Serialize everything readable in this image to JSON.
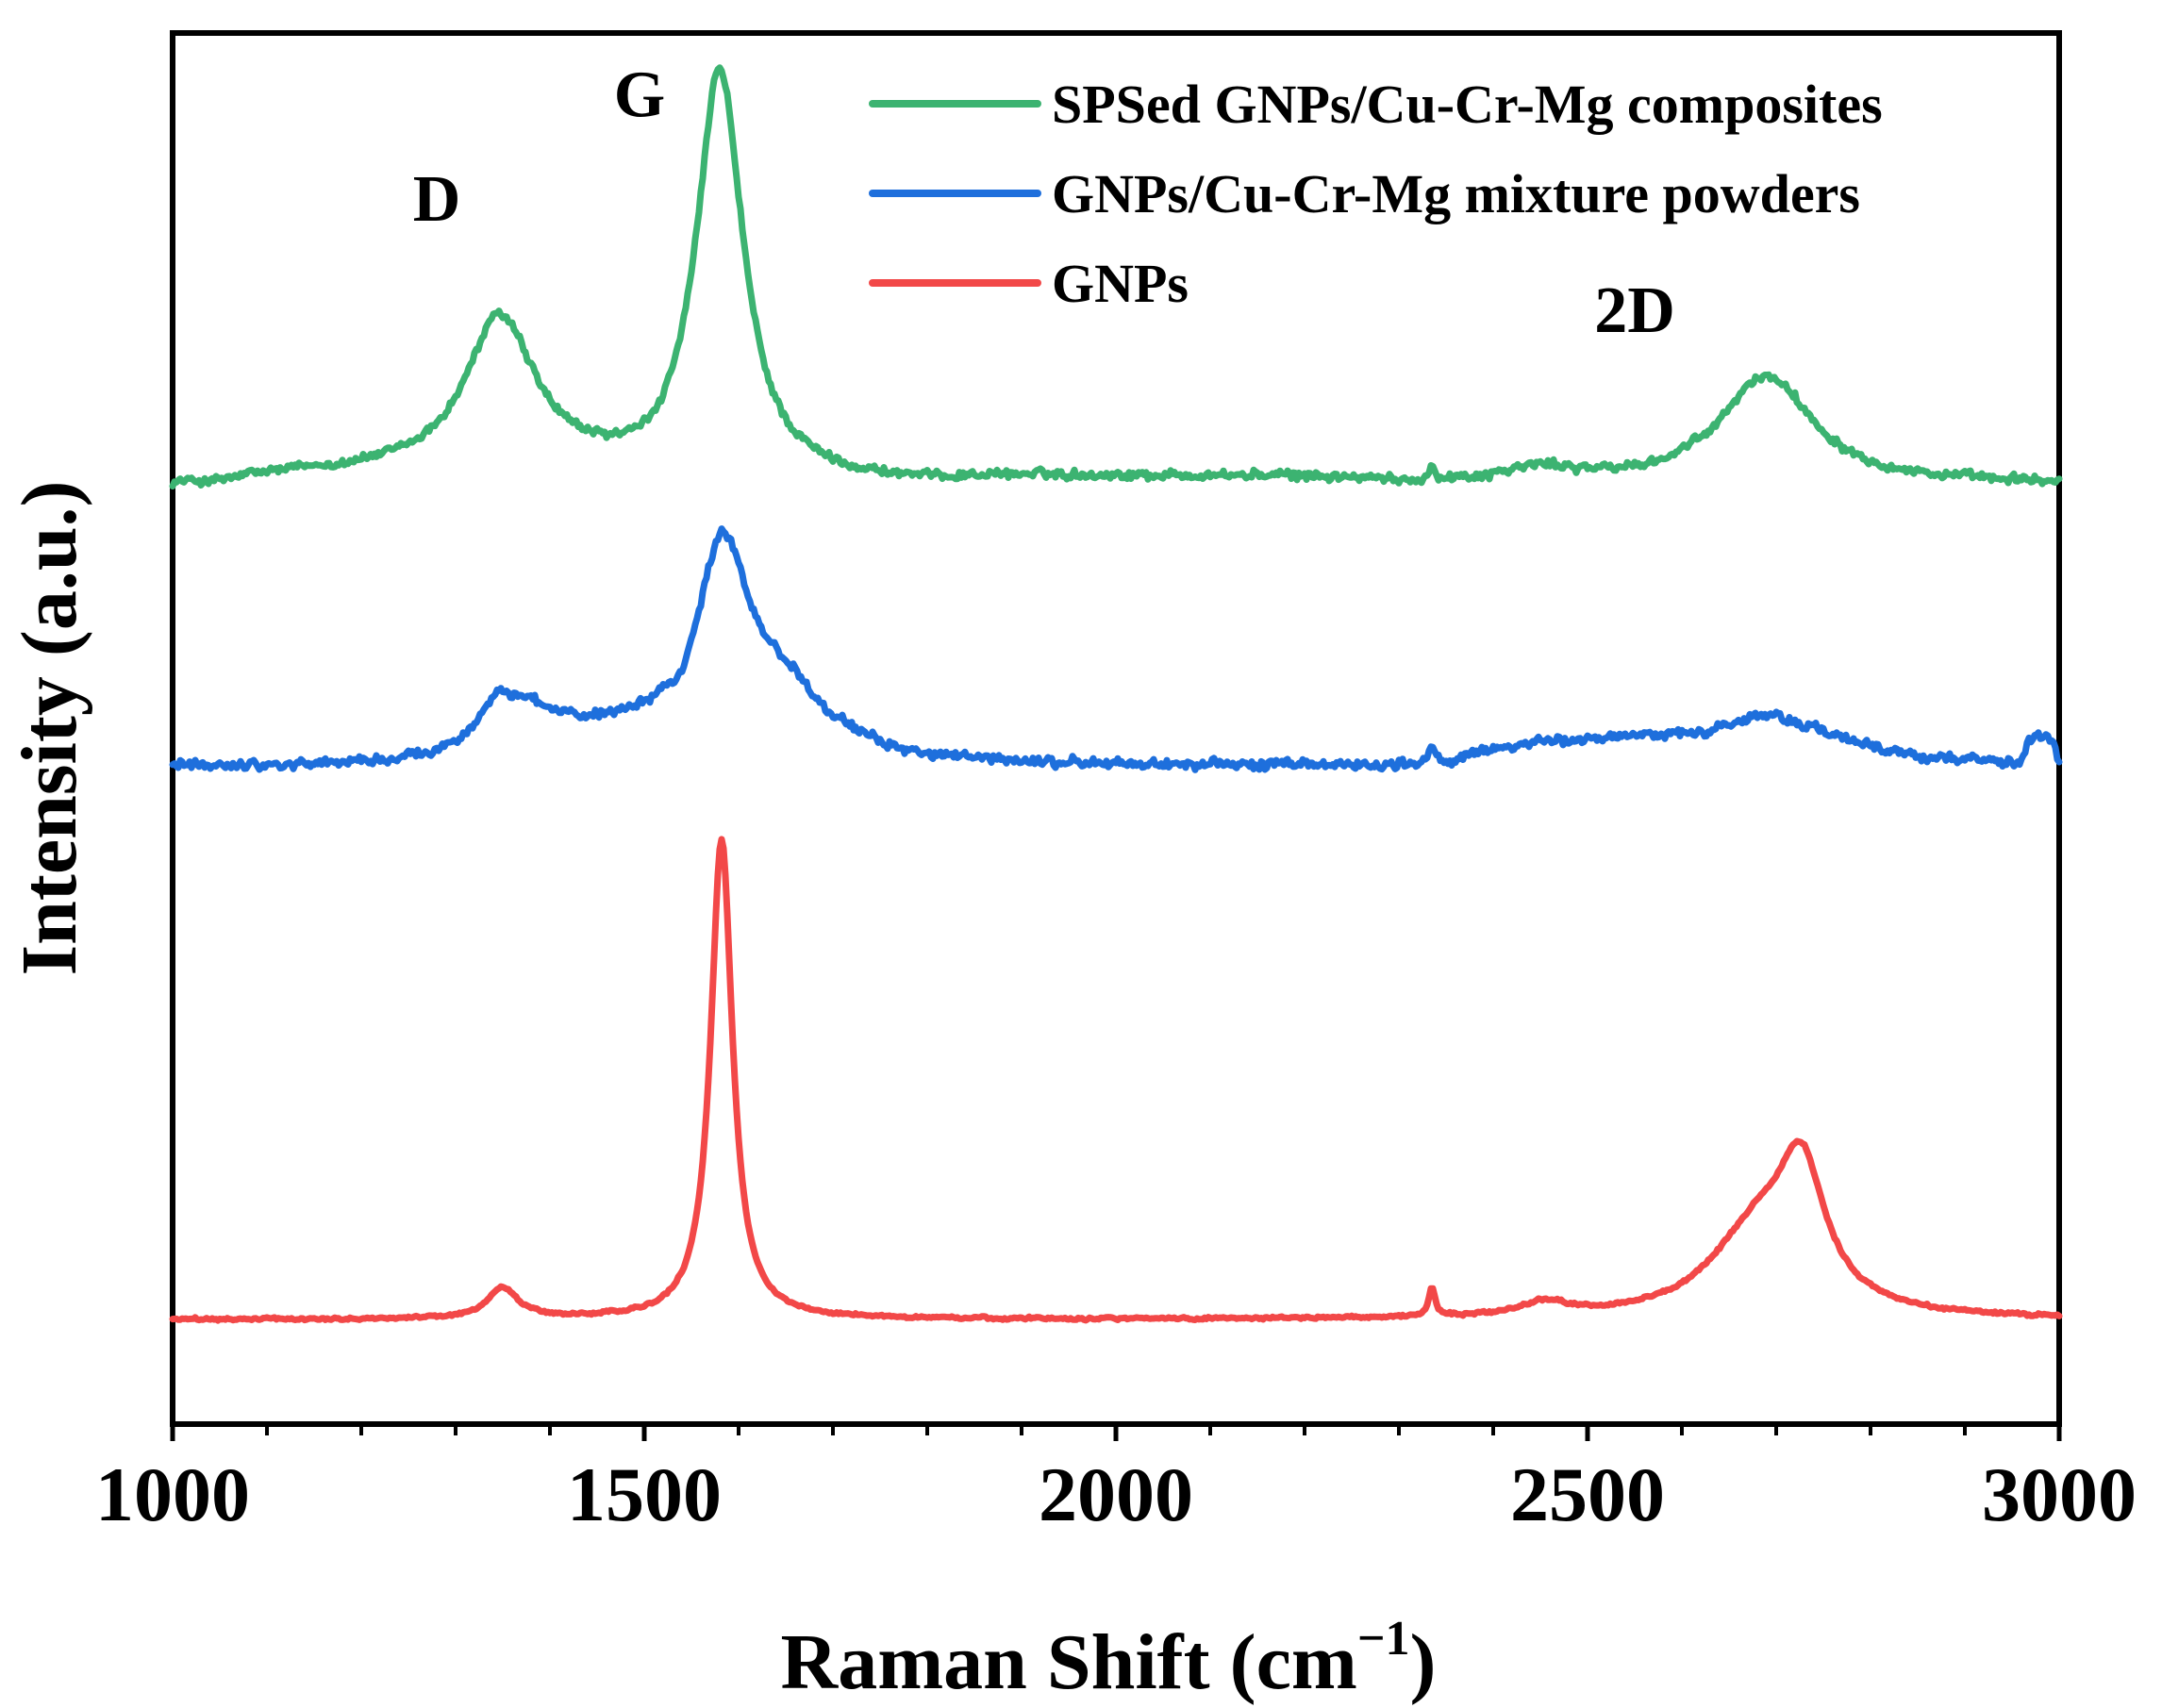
{
  "chart_data": {
    "type": "line",
    "title": "",
    "xlabel": "Raman Shift (cm",
    "xlabel_superscript": "−1",
    "xlabel_close": ")",
    "ylabel": "Intensity (a.u.)",
    "xlim": [
      1000,
      3000
    ],
    "ylim": [
      0,
      10
    ],
    "x_ticks": [
      1000,
      1500,
      2000,
      2500,
      3000
    ],
    "x_tick_labels": [
      "1000",
      "1500",
      "2000",
      "2500",
      "3000"
    ],
    "x_minor_step": 100,
    "y_ticks": [],
    "grid": false,
    "legend_position": "top-right",
    "peak_annotations": [
      {
        "label": "D",
        "x": 1280,
        "y": 8.65
      },
      {
        "label": "G",
        "x": 1495,
        "y": 9.4
      },
      {
        "label": "2D",
        "x": 2550,
        "y": 7.85
      }
    ],
    "series": [
      {
        "name": "SPSed GNPs/Cu-Cr-Mg composites",
        "color": "#3cb371",
        "baseline": 6.75,
        "noise": 0.04,
        "peaks": [
          {
            "center": 1347,
            "height": 1.1,
            "width": 45
          },
          {
            "center": 1580,
            "height": 2.95,
            "width": 30
          },
          {
            "center": 2335,
            "height": 0.1,
            "width": 4
          },
          {
            "center": 2450,
            "height": 0.1,
            "width": 50
          },
          {
            "center": 2690,
            "height": 0.78,
            "width": 60
          }
        ],
        "offsets": [
          {
            "from": 1050,
            "to": 1500,
            "value": 0.08
          },
          {
            "from": 1800,
            "to": 2300,
            "value": 0.05
          }
        ]
      },
      {
        "name": "GNPs/Cu-Cr-Mg mixture powders",
        "color": "#1e6fdc",
        "baseline": 4.72,
        "noise": 0.045,
        "peaks": [
          {
            "center": 1350,
            "height": 0.5,
            "width": 35
          },
          {
            "center": 1583,
            "height": 1.48,
            "width": 35
          },
          {
            "center": 1650,
            "height": 0.45,
            "width": 60
          },
          {
            "center": 2335,
            "height": 0.12,
            "width": 4
          },
          {
            "center": 2690,
            "height": 0.37,
            "width": 90
          }
        ],
        "offsets": [
          {
            "from": 1360,
            "to": 1540,
            "value": 0.2
          },
          {
            "from": 2360,
            "to": 2620,
            "value": 0.13
          },
          {
            "from": 2960,
            "to": 3000,
            "value": 0.18
          }
        ]
      },
      {
        "name": "GNPs",
        "color": "#f24848",
        "baseline": 0.75,
        "noise": 0.012,
        "peaks": [
          {
            "center": 1350,
            "height": 0.22,
            "width": 20
          },
          {
            "center": 1582,
            "height": 3.45,
            "width": 14
          },
          {
            "center": 2335,
            "height": 0.2,
            "width": 4
          },
          {
            "center": 2455,
            "height": 0.1,
            "width": 30
          },
          {
            "center": 2680,
            "height": 0.6,
            "width": 60
          },
          {
            "center": 2727,
            "height": 0.9,
            "width": 30
          }
        ],
        "offsets": []
      }
    ]
  }
}
